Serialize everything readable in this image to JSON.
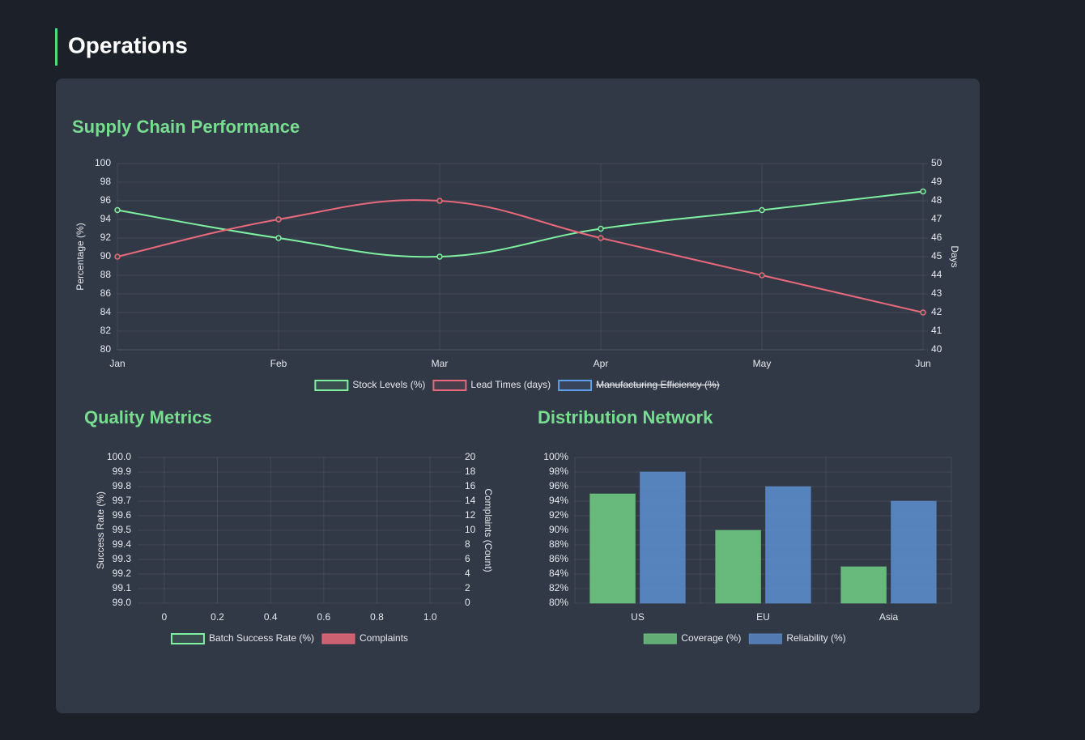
{
  "header": {
    "title": "Operations"
  },
  "chart_data": [
    {
      "type": "line",
      "title": "Supply Chain Performance",
      "categories": [
        "Jan",
        "Feb",
        "Mar",
        "Apr",
        "May",
        "Jun"
      ],
      "series": [
        {
          "name": "Stock Levels (%)",
          "color": "#7ff0a0",
          "values": [
            95,
            92,
            90,
            93,
            95,
            97
          ]
        },
        {
          "name": "Lead Times (days)",
          "color": "#e8697a",
          "axis": "y2",
          "values": [
            45,
            47,
            48,
            46,
            44,
            42
          ]
        },
        {
          "name": "Manufacturing Efficiency (%)",
          "color": "#5f9ee8",
          "hidden": true,
          "values": [
            null,
            null,
            null,
            null,
            null,
            null
          ]
        }
      ],
      "ylabel": "Percentage (%)",
      "y2label": "Days",
      "ylim": [
        80,
        100
      ],
      "yticks": [
        80,
        82,
        84,
        86,
        88,
        90,
        92,
        94,
        96,
        98,
        100
      ],
      "y2lim": [
        40,
        50
      ],
      "y2ticks": [
        40,
        41,
        42,
        43,
        44,
        45,
        46,
        47,
        48,
        49,
        50
      ],
      "grid": true,
      "legend": "bottom"
    },
    {
      "type": "bar",
      "title": "Quality Metrics",
      "x": [],
      "series": [
        {
          "name": "Batch Success Rate (%)",
          "color": "#7ff0a0",
          "type": "line",
          "values": []
        },
        {
          "name": "Complaints",
          "color": "#e8697a",
          "axis": "y2",
          "values": []
        }
      ],
      "ylabel": "Success Rate (%)",
      "y2label": "Complaints (Count)",
      "xlim": [
        -0.1,
        1.1
      ],
      "xticks": [
        0,
        0.2,
        0.4,
        0.6,
        0.8,
        {
          "value": 1,
          "label": "1.0"
        }
      ],
      "ylim": [
        99,
        100
      ],
      "yticks": [
        {
          "value": 99,
          "label": "99.0"
        },
        99.1,
        99.2,
        99.3,
        99.4,
        99.5,
        99.6,
        99.7,
        99.8,
        99.9,
        {
          "value": 100,
          "label": "100.0"
        }
      ],
      "y2lim": [
        0,
        20
      ],
      "y2ticks": [
        0,
        2,
        4,
        6,
        8,
        10,
        12,
        14,
        16,
        18,
        20
      ],
      "grid": true,
      "legend": "bottom"
    },
    {
      "type": "bar",
      "title": "Distribution Network",
      "categories": [
        "US",
        "EU",
        "Asia"
      ],
      "series": [
        {
          "name": "Coverage (%)",
          "color": "#6cc17f",
          "values": [
            95,
            90,
            85
          ]
        },
        {
          "name": "Reliability (%)",
          "color": "#5a87c4",
          "values": [
            98,
            96,
            94
          ]
        }
      ],
      "ylim": [
        80,
        100
      ],
      "yticks": [
        {
          "value": 80,
          "label": "80%"
        },
        {
          "value": 82,
          "label": "82%"
        },
        {
          "value": 84,
          "label": "84%"
        },
        {
          "value": 86,
          "label": "86%"
        },
        {
          "value": 88,
          "label": "88%"
        },
        {
          "value": 90,
          "label": "90%"
        },
        {
          "value": 92,
          "label": "92%"
        },
        {
          "value": 94,
          "label": "94%"
        },
        {
          "value": 96,
          "label": "96%"
        },
        {
          "value": 98,
          "label": "98%"
        },
        {
          "value": 100,
          "label": "100%"
        }
      ],
      "grid": true,
      "legend": "bottom"
    }
  ]
}
